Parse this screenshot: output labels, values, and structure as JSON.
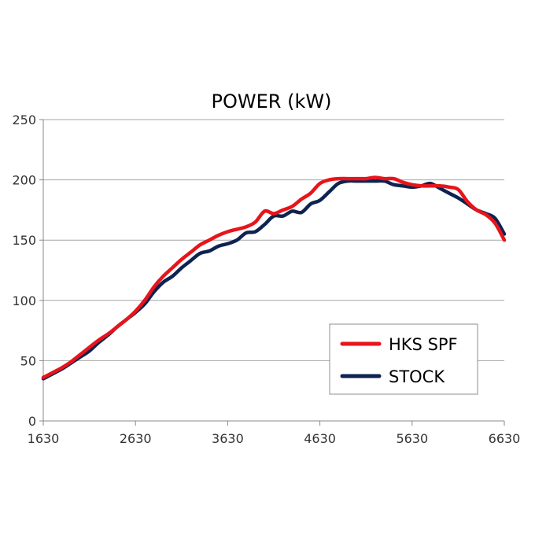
{
  "chart_data": {
    "type": "line",
    "title": "POWER (kW)",
    "xlabel": "",
    "ylabel": "",
    "xlim": [
      1630,
      6630
    ],
    "ylim": [
      0,
      250
    ],
    "x_ticks": [
      1630,
      2630,
      3630,
      4630,
      5630,
      6630
    ],
    "y_ticks": [
      0,
      50,
      100,
      150,
      200,
      250
    ],
    "grid": "horizontal",
    "legend_position": "bottom-right",
    "series": [
      {
        "name": "HKS SPF",
        "color": "#e8141b",
        "x": [
          1630,
          1730,
          1830,
          1930,
          2030,
          2130,
          2230,
          2330,
          2430,
          2530,
          2630,
          2730,
          2830,
          2930,
          3030,
          3130,
          3230,
          3330,
          3430,
          3530,
          3630,
          3730,
          3830,
          3930,
          4030,
          4130,
          4230,
          4330,
          4430,
          4530,
          4630,
          4730,
          4830,
          4930,
          5030,
          5130,
          5230,
          5330,
          5430,
          5530,
          5630,
          5730,
          5830,
          5930,
          6030,
          6130,
          6230,
          6330,
          6430,
          6530,
          6630
        ],
        "y": [
          36,
          40,
          44,
          49,
          55,
          61,
          67,
          72,
          78,
          84,
          91,
          100,
          111,
          120,
          127,
          134,
          140,
          146,
          150,
          154,
          157,
          159,
          161,
          165,
          174,
          172,
          175,
          178,
          184,
          189,
          197,
          200,
          201,
          201,
          201,
          201,
          202,
          201,
          201,
          198,
          196,
          195,
          195,
          195,
          194,
          192,
          182,
          175,
          171,
          164,
          150
        ]
      },
      {
        "name": "STOCK",
        "color": "#0e2352",
        "x": [
          1630,
          1730,
          1830,
          1930,
          2030,
          2130,
          2230,
          2330,
          2430,
          2530,
          2630,
          2730,
          2830,
          2930,
          3030,
          3130,
          3230,
          3330,
          3430,
          3530,
          3630,
          3730,
          3830,
          3930,
          4030,
          4130,
          4230,
          4330,
          4430,
          4530,
          4630,
          4730,
          4830,
          4930,
          5030,
          5130,
          5230,
          5330,
          5430,
          5530,
          5630,
          5730,
          5830,
          5930,
          6030,
          6130,
          6230,
          6330,
          6430,
          6530,
          6630
        ],
        "y": [
          35,
          39,
          43,
          48,
          53,
          58,
          65,
          71,
          78,
          84,
          90,
          97,
          107,
          115,
          120,
          127,
          133,
          139,
          141,
          145,
          147,
          150,
          156,
          157,
          163,
          170,
          170,
          174,
          173,
          180,
          183,
          190,
          197,
          199,
          199,
          199,
          199,
          199,
          196,
          195,
          194,
          195,
          197,
          193,
          189,
          185,
          180,
          175,
          172,
          168,
          155
        ]
      }
    ]
  }
}
